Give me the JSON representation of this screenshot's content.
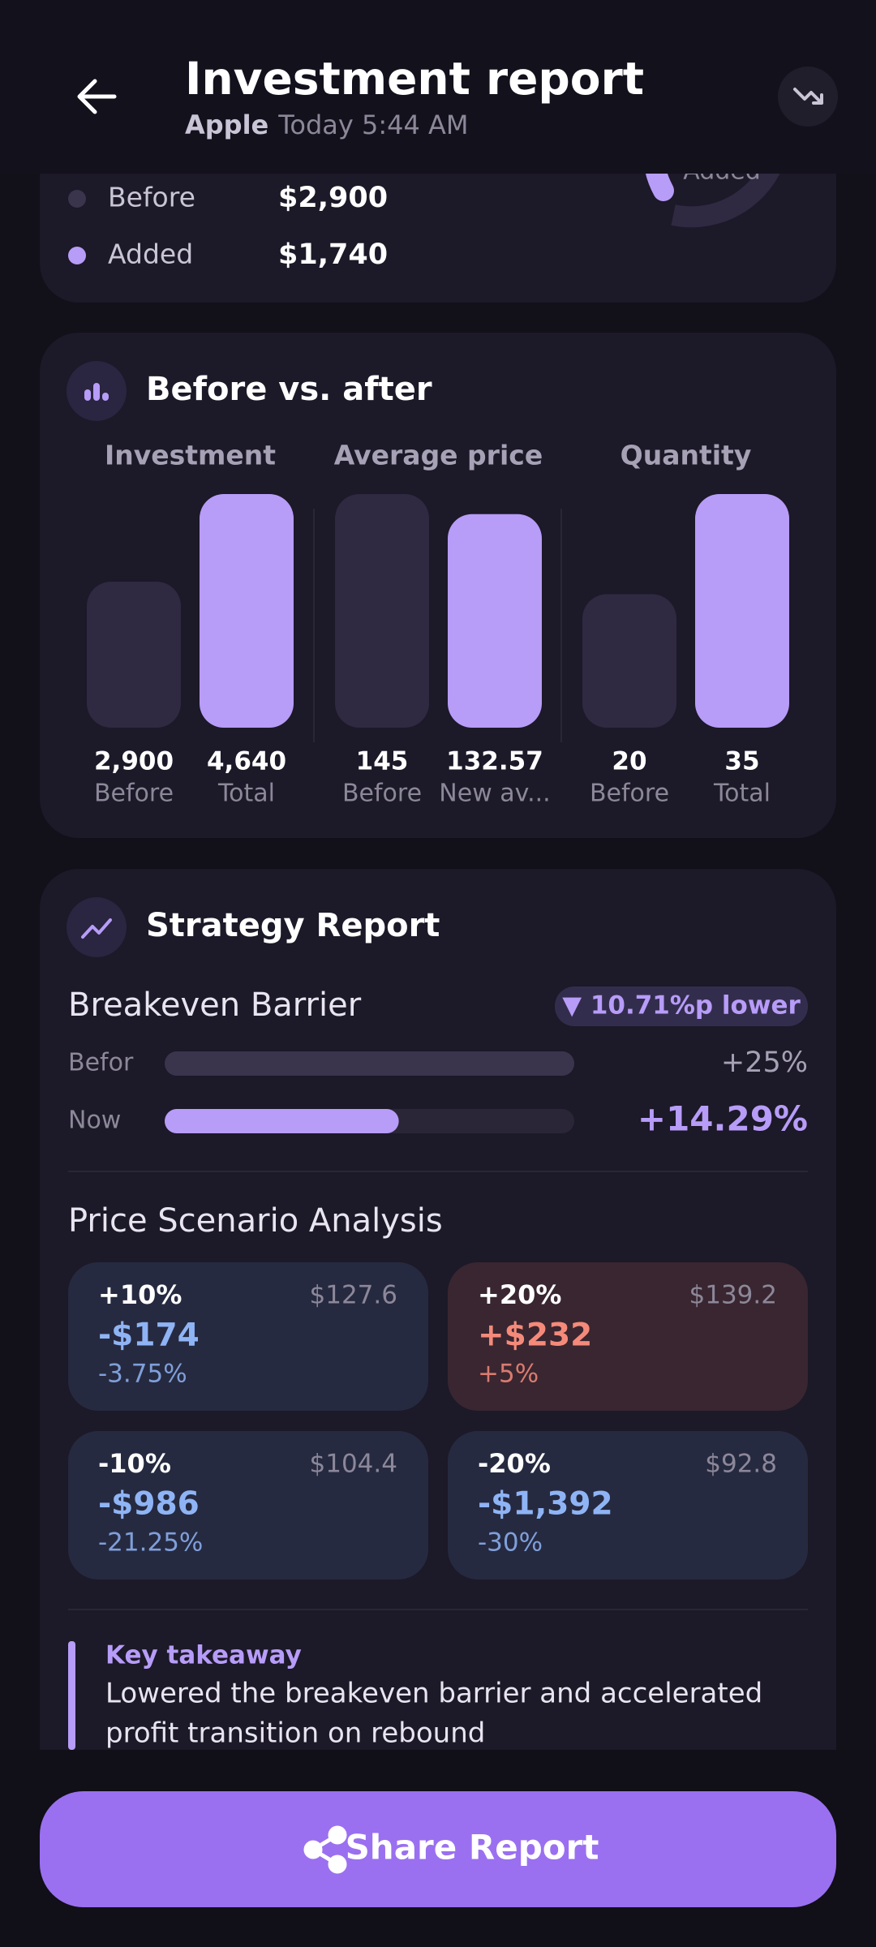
{
  "header": {
    "title": "Investment report",
    "company": "Apple",
    "timestamp": "Today 5:44 AM"
  },
  "summary": {
    "donut_label": "Added",
    "rows": [
      {
        "label": "Before",
        "value": "$2,900",
        "color": "#3a344d"
      },
      {
        "label": "Added",
        "value": "$1,740",
        "color": "#b79cf8"
      }
    ]
  },
  "comparison": {
    "title": "Before vs. after",
    "before_color": "#2f2941",
    "after_color": "#b79cf8",
    "groups": [
      {
        "name": "Investment",
        "bars": [
          {
            "value": 2900,
            "label": "2,900",
            "caption": "Before"
          },
          {
            "value": 4640,
            "label": "4,640",
            "caption": "Total"
          }
        ]
      },
      {
        "name": "Average price",
        "bars": [
          {
            "value": 145,
            "label": "145",
            "caption": "Before"
          },
          {
            "value": 132.57,
            "label": "132.57",
            "caption": "New av..."
          }
        ]
      },
      {
        "name": "Quantity",
        "bars": [
          {
            "value": 20,
            "label": "20",
            "caption": "Before"
          },
          {
            "value": 35,
            "label": "35",
            "caption": "Total"
          }
        ]
      }
    ]
  },
  "strategy": {
    "title": "Strategy Report",
    "breakeven": {
      "title": "Breakeven Barrier",
      "badge": "▼ 10.71%p lower",
      "xlim": [
        0,
        25
      ],
      "rows": [
        {
          "label": "Befor",
          "value": 25,
          "value_label": "+25%",
          "color": "#3a344d"
        },
        {
          "label": "Now",
          "value": 14.29,
          "value_label": "+14.29%",
          "color": "#b79cf8"
        }
      ]
    },
    "scenarios": {
      "title": "Price Scenario Analysis",
      "items": [
        {
          "change": "+10%",
          "price": "$127.6",
          "amount": "-$174",
          "rate": "-3.75%",
          "color": "#8fb4f5",
          "background": "#262a40"
        },
        {
          "change": "+20%",
          "price": "$139.2",
          "amount": "+$232",
          "rate": "+5%",
          "color": "#f58a7a",
          "background": "#392630"
        },
        {
          "change": "-10%",
          "price": "$104.4",
          "amount": "-$986",
          "rate": "-21.25%",
          "color": "#8fb4f5",
          "background": "#262a40"
        },
        {
          "change": "-20%",
          "price": "$92.8",
          "amount": "-$1,392",
          "rate": "-30%",
          "color": "#8fb4f5",
          "background": "#262a40"
        }
      ]
    },
    "takeaway": {
      "heading": "Key takeaway",
      "lines": [
        "Lowered the breakeven barrier and accelerated",
        "profit transition on rebound"
      ]
    }
  },
  "share_button": "Share Report"
}
